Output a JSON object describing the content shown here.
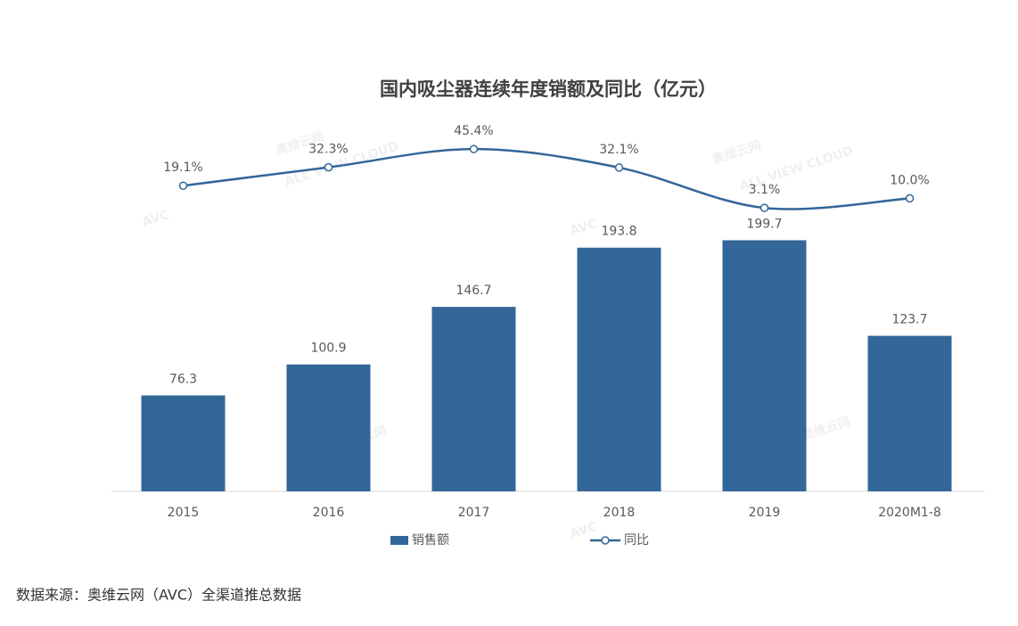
{
  "chart_data": {
    "type": "bar",
    "title": "国内吸尘器连续年度销额及同比（亿元）",
    "categories": [
      "2015",
      "2016",
      "2017",
      "2018",
      "2019",
      "2020M1-8"
    ],
    "series": [
      {
        "name": "销售额",
        "type": "bar",
        "color": "#336699",
        "values": [
          76.3,
          100.9,
          146.7,
          193.8,
          199.7,
          123.7
        ]
      },
      {
        "name": "同比",
        "type": "line",
        "axis": "y2",
        "color": "#336699",
        "values": [
          19.1,
          32.3,
          45.4,
          32.1,
          3.1,
          10.0
        ],
        "value_labels": [
          "19.1%",
          "32.3%",
          "45.4%",
          "32.1%",
          "3.1%",
          "10.0%"
        ]
      }
    ],
    "legend": "bottom",
    "watermark": [
      "AVC",
      "奥维云网",
      "ALL VIEW CLOUD"
    ]
  },
  "source": "数据来源：奥维云网（AVC）全渠道推总数据"
}
